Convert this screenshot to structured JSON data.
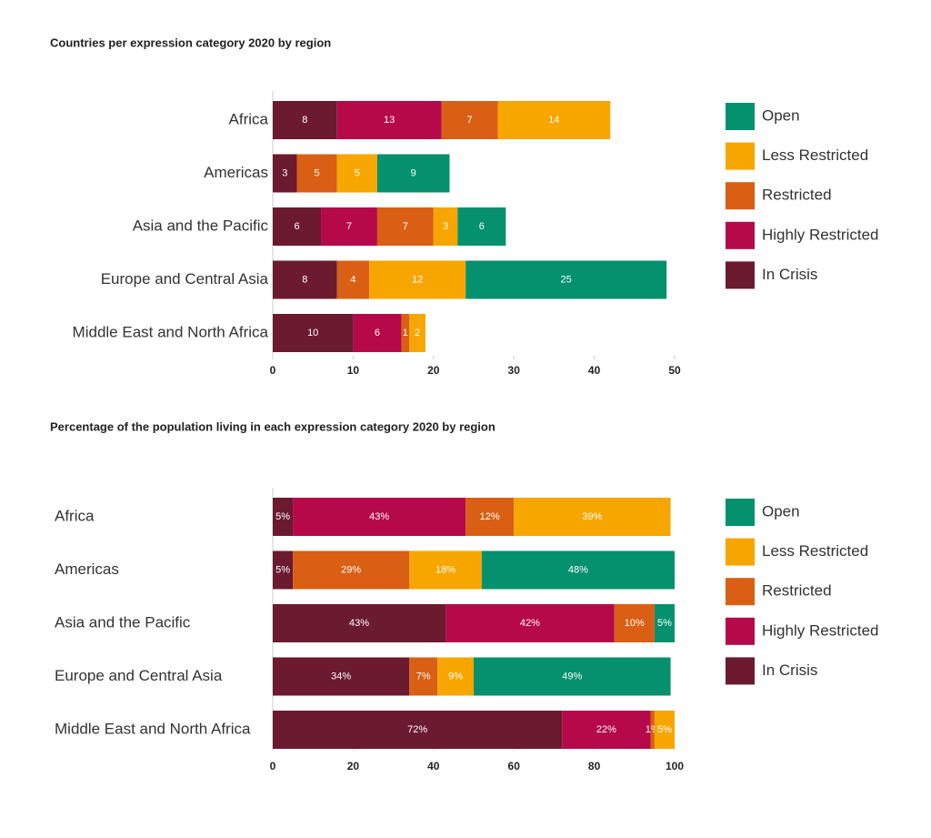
{
  "chart_data": [
    {
      "type": "bar",
      "horizontal": true,
      "stacked": true,
      "title": "Countries per expression category 2020 by region",
      "categories": [
        "Africa",
        "Americas",
        "Asia and the Pacific",
        "Europe and Central Asia",
        "Middle East and North Africa"
      ],
      "series": [
        {
          "name": "In Crisis",
          "color": "#6b1a30",
          "values": [
            8,
            3,
            6,
            8,
            10
          ]
        },
        {
          "name": "Highly Restricted",
          "color": "#b5094a",
          "values": [
            13,
            null,
            7,
            null,
            6
          ]
        },
        {
          "name": "Restricted",
          "color": "#d95f14",
          "values": [
            7,
            5,
            7,
            4,
            1
          ]
        },
        {
          "name": "Less Restricted",
          "color": "#f7a600",
          "values": [
            14,
            5,
            3,
            12,
            2
          ]
        },
        {
          "name": "Open",
          "color": "#05906e",
          "values": [
            null,
            9,
            6,
            25,
            null
          ]
        }
      ],
      "xlim": [
        0,
        50
      ],
      "xticks": [
        0,
        10,
        20,
        30,
        40,
        50
      ],
      "legend": "right"
    },
    {
      "type": "bar",
      "horizontal": true,
      "stacked": true,
      "title": "Percentage of the population living in each expression category 2020 by region",
      "categories": [
        "Africa",
        "Americas",
        "Asia and the Pacific",
        "Europe and Central Asia",
        "Middle East and North Africa"
      ],
      "series": [
        {
          "name": "In Crisis",
          "color": "#6b1a30",
          "values": [
            5,
            5,
            43,
            34,
            72
          ],
          "value_labels": [
            "5%",
            "5%",
            "43%",
            "34%",
            "72%"
          ]
        },
        {
          "name": "Highly Restricted",
          "color": "#b5094a",
          "values": [
            43,
            null,
            42,
            null,
            22
          ],
          "value_labels": [
            "43%",
            null,
            "42%",
            null,
            "22%"
          ]
        },
        {
          "name": "Restricted",
          "color": "#d95f14",
          "values": [
            12,
            29,
            10,
            7,
            1
          ],
          "value_labels": [
            "12%",
            "29%",
            "10%",
            "7%",
            "1%"
          ]
        },
        {
          "name": "Less Restricted",
          "color": "#f7a600",
          "values": [
            39,
            18,
            null,
            9,
            5
          ],
          "value_labels": [
            "39%",
            "18%",
            null,
            "9%",
            "5%"
          ]
        },
        {
          "name": "Open",
          "color": "#05906e",
          "values": [
            null,
            48,
            5,
            49,
            null
          ],
          "value_labels": [
            null,
            "48%",
            "5%",
            "49%",
            null
          ]
        }
      ],
      "xlim": [
        0,
        100
      ],
      "xticks": [
        0,
        20,
        40,
        60,
        80,
        100
      ],
      "legend": "right"
    }
  ]
}
